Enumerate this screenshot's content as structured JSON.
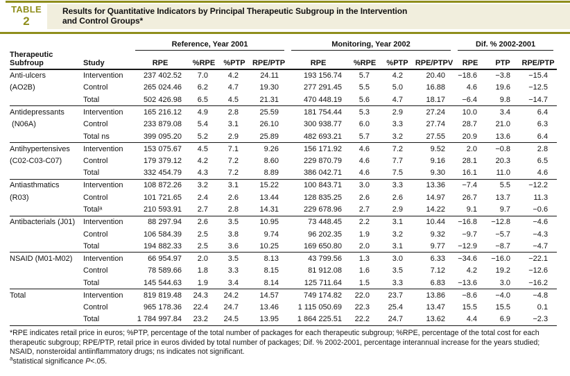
{
  "colors": {
    "accent": "#8f8e1c",
    "band": "#f1eedd",
    "rule": "#161616"
  },
  "table_label": {
    "kicker": "TABLE",
    "number": "2"
  },
  "title": {
    "line1": "Results for Quantitative Indicators by Principal Therapeutic Subgroup in the Intervention",
    "line2": "and Control Groups*"
  },
  "header": {
    "col1": "Therapeutic Subfroup",
    "col2": "Study",
    "groups": [
      {
        "label": "Reference, Year 2001",
        "cols": [
          "RPE",
          "%RPE",
          "%PTP",
          "RPE/PTP"
        ]
      },
      {
        "label": "Monitoring, Year 2002",
        "cols": [
          "RPE",
          "%RPE",
          "%PTP",
          "RPE/PTPV"
        ]
      },
      {
        "label": "Dif. % 2002-2001",
        "cols": [
          "RPE",
          "PTP",
          "RPE/PTP"
        ]
      }
    ]
  },
  "sections": [
    {
      "name": "Anti-ulcers",
      "code": "(AO2B)",
      "rows": [
        {
          "study": "Intervention",
          "values": [
            "237 402.52",
            "7.0",
            "4.2",
            "24.11",
            "193 156.74",
            "5.7",
            "4.2",
            "20.40",
            "−18.6",
            "−3.8",
            "−15.4"
          ]
        },
        {
          "study": "Control",
          "values": [
            "265 024.46",
            "6.2",
            "4.7",
            "19.30",
            "277 291.45",
            "5.5",
            "5.0",
            "16.88",
            "4.6",
            "19.6",
            "−12.5"
          ]
        },
        {
          "study": "Total",
          "values": [
            "502 426.98",
            "6.5",
            "4.5",
            "21.31",
            "470 448.19",
            "5.6",
            "4.7",
            "18.17",
            "−6.4",
            "9.8",
            "−14.7"
          ]
        }
      ]
    },
    {
      "name": "Antidepressants",
      "code": " (N06A)",
      "rows": [
        {
          "study": "Intervention",
          "values": [
            "165 216.12",
            "4.9",
            "2.8",
            "25.59",
            "181 754.44",
            "5.3",
            "2.9",
            "27.24",
            "10.0",
            "3.4",
            "6.4"
          ]
        },
        {
          "study": "Control",
          "values": [
            "233 879.08",
            "5.4",
            "3.1",
            "26.10",
            "300 938.77",
            "6.0",
            "3.3",
            "27.74",
            "28.7",
            "21.0",
            "6.3"
          ]
        },
        {
          "study": "Total ns",
          "values": [
            "399 095.20",
            "5.2",
            "2.9",
            "25.89",
            "482 693.21",
            "5.7",
            "3.2",
            "27.55",
            "20.9",
            "13.6",
            "6.4"
          ]
        }
      ]
    },
    {
      "name": "Antihypertensives",
      "code": "(C02-C03-C07)",
      "rows": [
        {
          "study": "Intervention",
          "values": [
            "153 075.67",
            "4.5",
            "7.1",
            "9.26",
            "156 171.92",
            "4.6",
            "7.2",
            "9.52",
            "2.0",
            "−0.8",
            "2.8"
          ]
        },
        {
          "study": "Control",
          "values": [
            "179 379.12",
            "4.2",
            "7.2",
            "8.60",
            "229 870.79",
            "4.6",
            "7.7",
            "9.16",
            "28.1",
            "20.3",
            "6.5"
          ]
        },
        {
          "study": "Total",
          "values": [
            "332 454.79",
            "4.3",
            "7.2",
            "8.89",
            "386 042.71",
            "4.6",
            "7.5",
            "9.30",
            "16.1",
            "11.0",
            "4.6"
          ]
        }
      ]
    },
    {
      "name": "Antiasthmatics",
      "code": "(R03)",
      "rows": [
        {
          "study": "Intervention",
          "values": [
            "108 872.26",
            "3.2",
            "3.1",
            "15.22",
            "100 843.71",
            "3.0",
            "3.3",
            "13.36",
            "−7.4",
            "5.5",
            "−12.2"
          ]
        },
        {
          "study": "Control",
          "values": [
            "101 721.65",
            "2.4",
            "2.6",
            "13.44",
            "128 835.25",
            "2.6",
            "2.6",
            "14.97",
            "26.7",
            "13.7",
            "11.3"
          ]
        },
        {
          "study": "Totalᵃ",
          "values": [
            "210 593.91",
            "2.7",
            "2.8",
            "14.31",
            "229 678.96",
            "2.7",
            "2.9",
            "14.22",
            "9.1",
            "9.7",
            "−0.6"
          ]
        }
      ]
    },
    {
      "name": "Antibacterials (J01)",
      "code": "",
      "rows": [
        {
          "study": "Intervention",
          "values": [
            "88 297.94",
            "2.6",
            "3.5",
            "10.95",
            "73 448.45",
            "2.2",
            "3.1",
            "10.44",
            "−16.8",
            "−12.8",
            "−4.6"
          ]
        },
        {
          "study": "Control",
          "values": [
            "106 584.39",
            "2.5",
            "3.8",
            "9.74",
            "96 202.35",
            "1.9",
            "3.2",
            "9.32",
            "−9.7",
            "−5.7",
            "−4.3"
          ]
        },
        {
          "study": "Total",
          "values": [
            "194 882.33",
            "2.5",
            "3.6",
            "10.25",
            "169 650.80",
            "2.0",
            "3.1",
            "9.77",
            "−12.9",
            "−8.7",
            "−4.7"
          ]
        }
      ]
    },
    {
      "name": "NSAID (M01-M02)",
      "code": "",
      "rows": [
        {
          "study": "Intervention",
          "values": [
            "66 954.97",
            "2.0",
            "3.5",
            "8.13",
            "43 799.56",
            "1.3",
            "3.0",
            "6.33",
            "−34.6",
            "−16.0",
            "−22.1"
          ]
        },
        {
          "study": "Control",
          "values": [
            "78 589.66",
            "1.8",
            "3.3",
            "8.15",
            "81 912.08",
            "1.6",
            "3.5",
            "7.12",
            "4.2",
            "19.2",
            "−12.6"
          ]
        },
        {
          "study": "Total",
          "values": [
            "145 544.63",
            "1.9",
            "3.4",
            "8.14",
            "125 711.64",
            "1.5",
            "3.3",
            "6.83",
            "−13.6",
            "3.0",
            "−16.2"
          ]
        }
      ]
    },
    {
      "name": "Total",
      "code": "",
      "rows": [
        {
          "study": "Intervention",
          "values": [
            "819 819.48",
            "24.3",
            "24.2",
            "14.57",
            "749 174.82",
            "22.0",
            "23.7",
            "13.86",
            "−8.6",
            "−4.0",
            "−4.8"
          ]
        },
        {
          "study": "Control",
          "values": [
            "965 178.36",
            "22.4",
            "24.7",
            "13.46",
            "1 115 050.69",
            "22.3",
            "25.4",
            "13.47",
            "15.5",
            "15.5",
            "0.1"
          ]
        },
        {
          "study": "Total",
          "values": [
            "1 784 997.84",
            "23.2",
            "24.5",
            "13.95",
            "1 864 225.51",
            "22.2",
            "24.7",
            "13.62",
            "4.4",
            "6.9",
            "−2.3"
          ]
        }
      ]
    }
  ],
  "footnote_main": "*RPE indicates retail price in euros; %PTP, percentage of the total number of packages for each therapeutic subgroup; %RPE, percentage of the total cost for each therapeutic subgroup; RPE/PTP, retail price in euros divided by total number of packages; Dif. % 2002-2001, percentage interannual increase for the years studied; NSAID, nonsteroidal antiinflammatory drugs; ns indicates not significant.",
  "footnote_sig": {
    "marker": "a",
    "pre": "statistical significance ",
    "italic": "P",
    "post": "<.05."
  }
}
